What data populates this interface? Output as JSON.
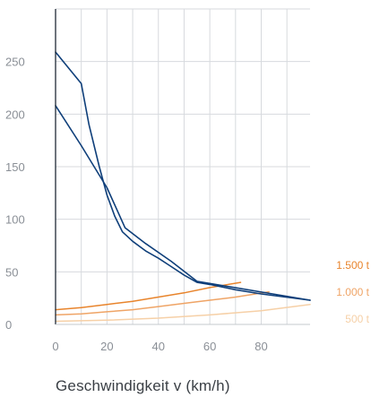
{
  "chart_data": {
    "type": "line",
    "title": "",
    "xlabel": "Geschwindigkeit v (km/h)",
    "ylabel": "",
    "xlim": [
      0,
      99
    ],
    "ylim": [
      0,
      300
    ],
    "xticks": [
      0,
      20,
      40,
      60,
      80
    ],
    "yticks": [
      0,
      50,
      100,
      150,
      200,
      250
    ],
    "grid": true,
    "legend": "right",
    "series": [
      {
        "id": "traction-a",
        "color": "#0f3f7a",
        "points": [
          [
            0,
            259
          ],
          [
            10,
            229
          ],
          [
            13,
            190
          ],
          [
            17,
            150
          ],
          [
            20,
            123
          ],
          [
            23,
            103
          ],
          [
            26,
            88
          ],
          [
            30,
            79
          ],
          [
            35,
            70
          ],
          [
            40,
            63
          ],
          [
            45,
            55
          ],
          [
            50,
            47
          ],
          [
            55,
            40
          ],
          [
            60,
            38
          ],
          [
            70,
            33
          ],
          [
            80,
            29
          ],
          [
            99,
            23
          ]
        ]
      },
      {
        "id": "traction-b",
        "color": "#0f3f7a",
        "points": [
          [
            0,
            208
          ],
          [
            10,
            170
          ],
          [
            20,
            130
          ],
          [
            27,
            92
          ],
          [
            35,
            77
          ],
          [
            45,
            60
          ],
          [
            55,
            41
          ],
          [
            99,
            23
          ]
        ]
      },
      {
        "name": "1.500 t",
        "color": "#e8842c",
        "points": [
          [
            0,
            14
          ],
          [
            10,
            16
          ],
          [
            20,
            19
          ],
          [
            30,
            22
          ],
          [
            40,
            26
          ],
          [
            50,
            30
          ],
          [
            60,
            35
          ],
          [
            72,
            40
          ]
        ]
      },
      {
        "name": "1.000 t",
        "color": "#efa466",
        "points": [
          [
            0,
            9
          ],
          [
            10,
            10
          ],
          [
            20,
            12
          ],
          [
            30,
            14
          ],
          [
            40,
            17
          ],
          [
            50,
            20
          ],
          [
            60,
            23
          ],
          [
            70,
            26
          ],
          [
            83,
            31
          ]
        ]
      },
      {
        "name": "500 t",
        "color": "#f6d0a7",
        "points": [
          [
            0,
            3
          ],
          [
            20,
            4
          ],
          [
            40,
            6
          ],
          [
            60,
            9
          ],
          [
            80,
            13
          ],
          [
            99,
            19
          ]
        ]
      }
    ]
  }
}
